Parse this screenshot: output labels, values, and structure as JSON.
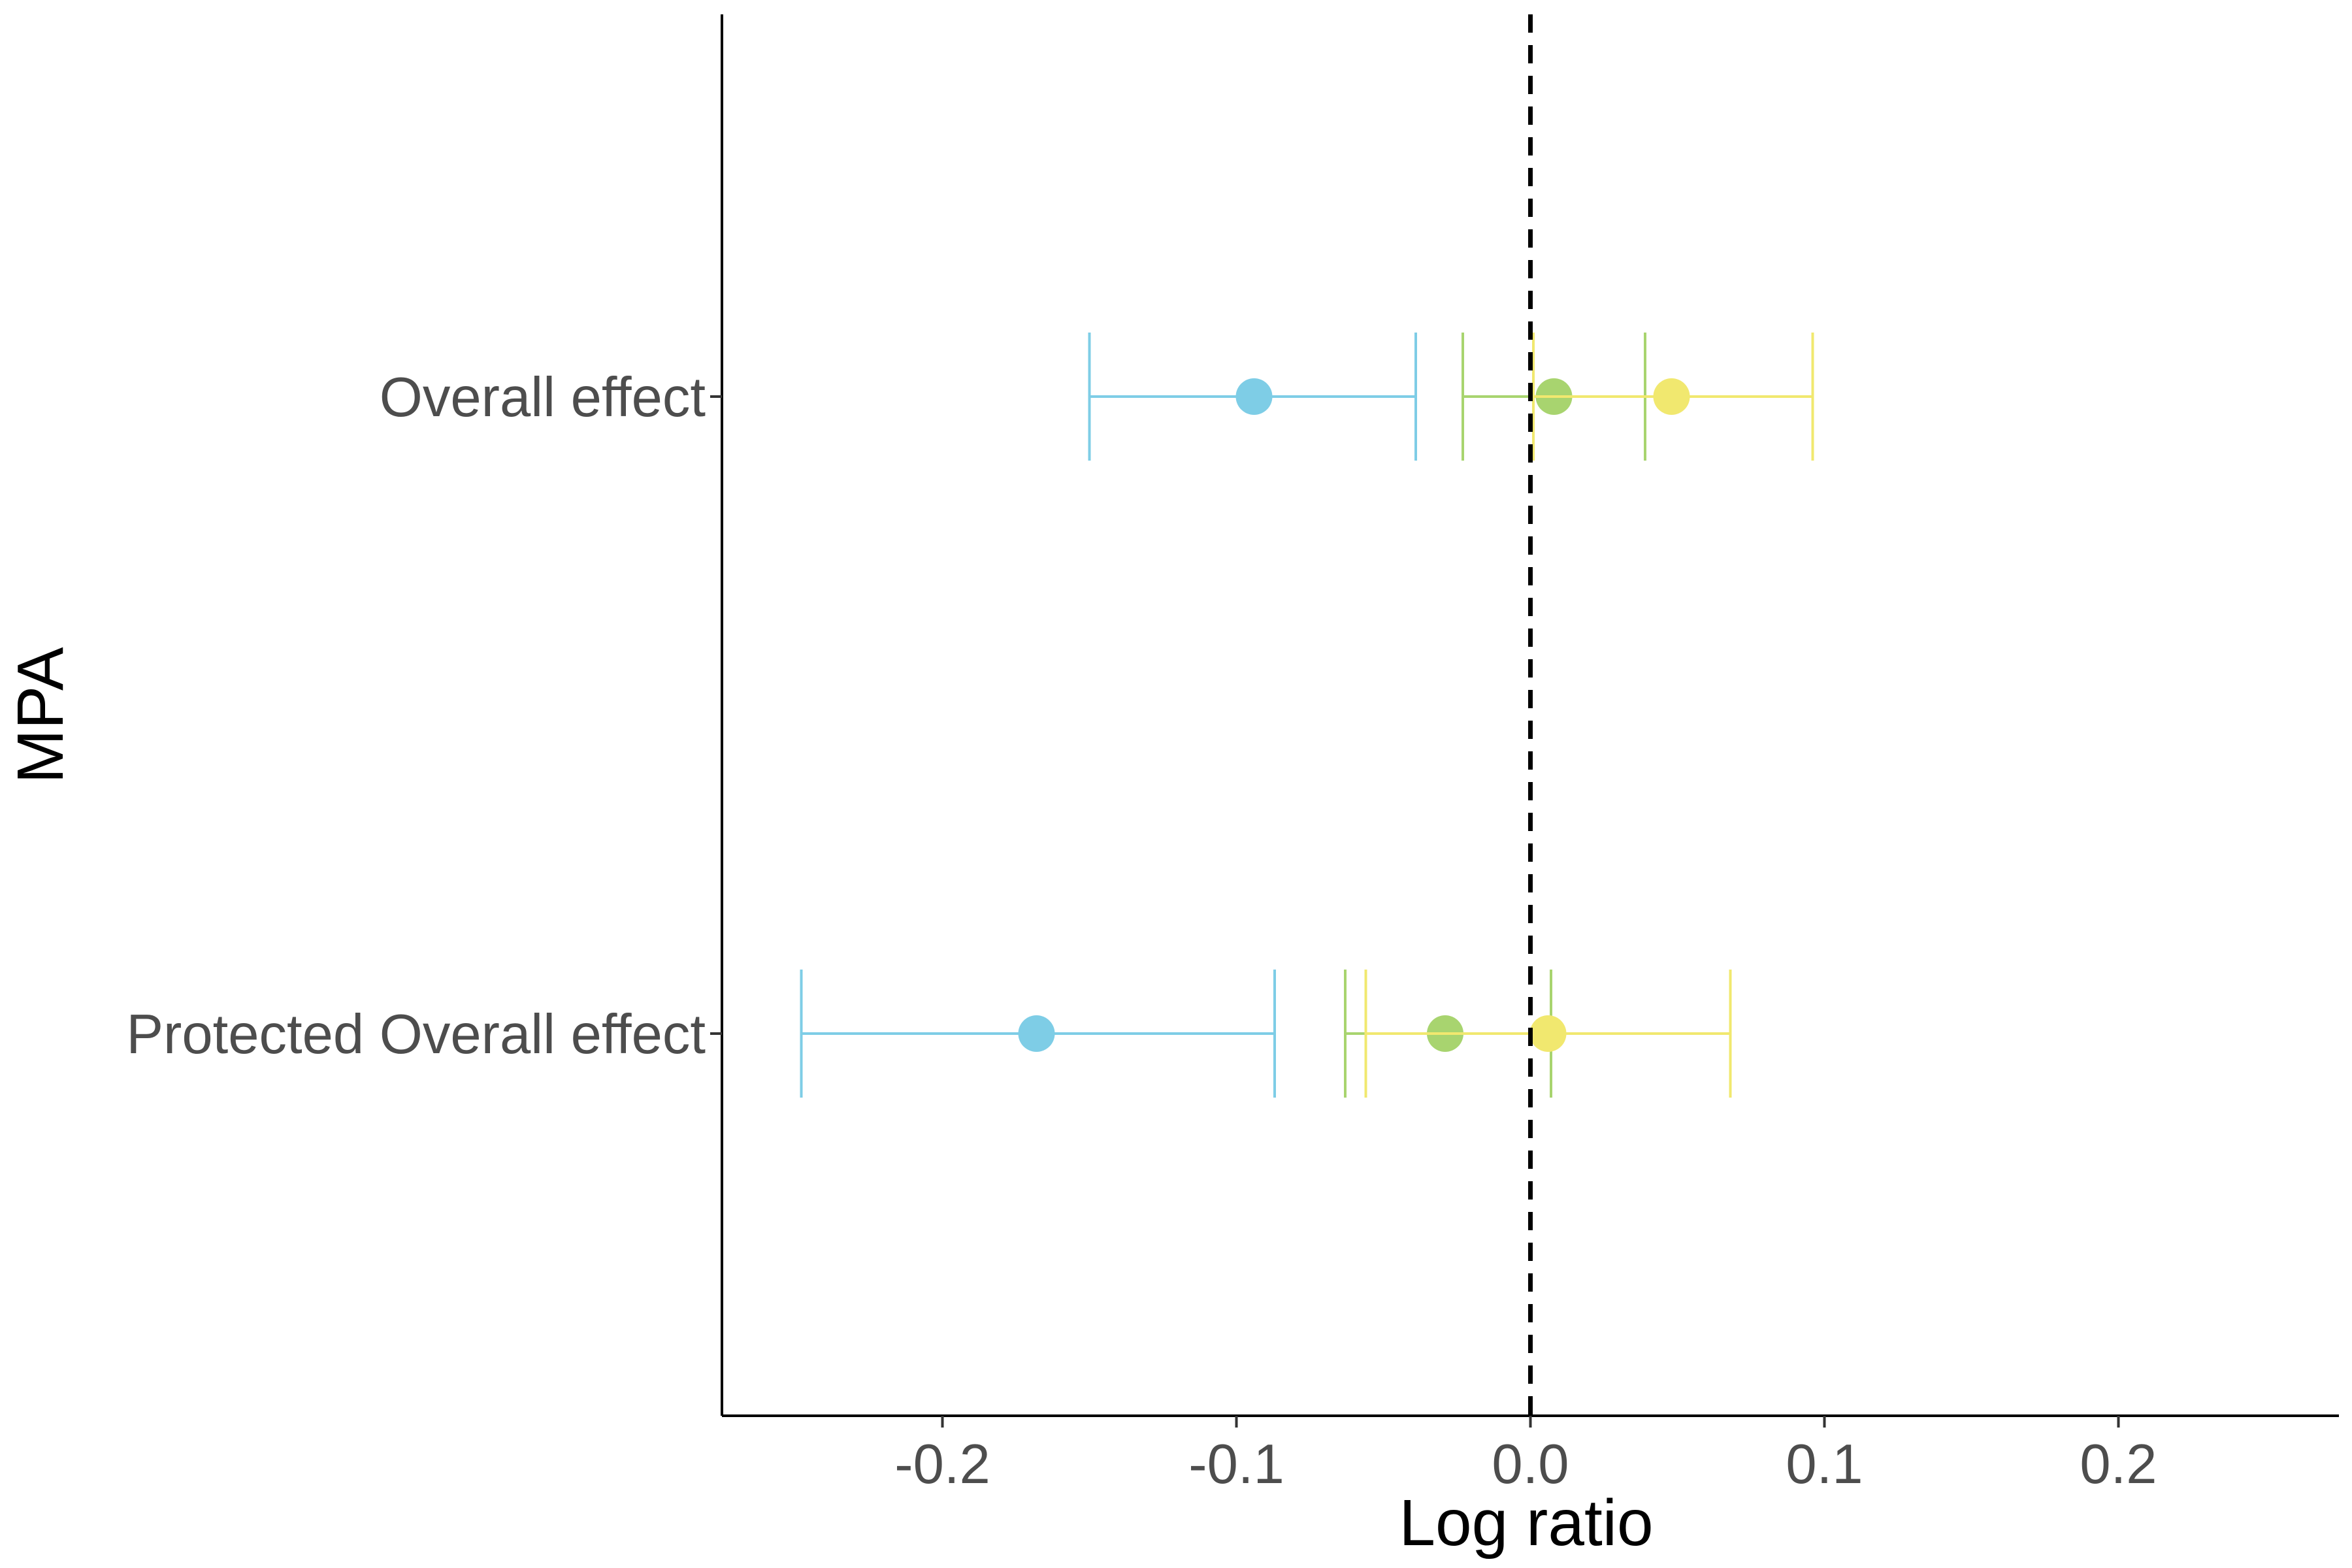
{
  "chart_data": {
    "type": "scatter",
    "subtype": "forest-plot",
    "title": "",
    "xlabel": "Log ratio",
    "ylabel": "MPA",
    "xlim": [
      -0.275,
      0.275
    ],
    "x_ticks": [
      -0.2,
      -0.1,
      0.0,
      0.1,
      0.2
    ],
    "x_tick_labels": [
      "-0.2",
      "-0.1",
      "0.0",
      "0.1",
      "0.2"
    ],
    "categories": [
      "Overall effect",
      "Protected Overall effect"
    ],
    "reference_line": {
      "x": 0,
      "style": "dashed",
      "color": "#000000"
    },
    "grid": false,
    "legend": "none",
    "series": [
      {
        "color": "#7ecde6",
        "points": [
          {
            "category": "Overall effect",
            "estimate": -0.094,
            "ci_low": -0.15,
            "ci_high": -0.039
          },
          {
            "category": "Protected Overall effect",
            "estimate": -0.168,
            "ci_low": -0.248,
            "ci_high": -0.087
          }
        ]
      },
      {
        "color": "#a8d46f",
        "points": [
          {
            "category": "Overall effect",
            "estimate": 0.008,
            "ci_low": -0.023,
            "ci_high": 0.039
          },
          {
            "category": "Protected Overall effect",
            "estimate": -0.029,
            "ci_low": -0.063,
            "ci_high": 0.007
          }
        ]
      },
      {
        "color": "#f1e86f",
        "points": [
          {
            "category": "Overall effect",
            "estimate": 0.048,
            "ci_low": 0.001,
            "ci_high": 0.096
          },
          {
            "category": "Protected Overall effect",
            "estimate": 0.006,
            "ci_low": -0.056,
            "ci_high": 0.068
          }
        ]
      }
    ]
  }
}
